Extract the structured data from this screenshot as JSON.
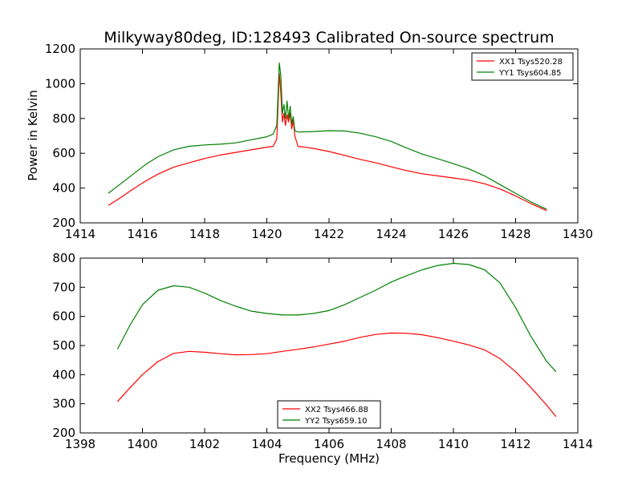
{
  "figure": {
    "title": "Milkyway80deg, ID:128493 Calibrated On-source spectrum",
    "xlabel": "Frequency (MHz)",
    "ylabel": "Power in Kelvin"
  },
  "chart_data": [
    {
      "type": "line",
      "xlim": [
        1414,
        1430
      ],
      "ylim": [
        200,
        1200
      ],
      "xticks": [
        1414,
        1416,
        1418,
        1420,
        1422,
        1424,
        1426,
        1428,
        1430
      ],
      "yticks": [
        200,
        400,
        600,
        800,
        1000,
        1200
      ],
      "grid": false,
      "legend_position": "top-right",
      "series": [
        {
          "name": "XX1 Tsys520.28",
          "color": "#ff0000",
          "x": [
            1414.9,
            1415.3,
            1415.7,
            1416.1,
            1416.5,
            1417.0,
            1417.5,
            1418.0,
            1418.5,
            1419.0,
            1419.5,
            1420.0,
            1420.2,
            1420.32,
            1420.4,
            1420.45,
            1420.5,
            1420.55,
            1420.6,
            1420.65,
            1420.7,
            1420.75,
            1420.8,
            1420.85,
            1420.9,
            1421.0,
            1421.5,
            1422.0,
            1422.5,
            1423.0,
            1423.5,
            1424.0,
            1424.5,
            1425.0,
            1425.5,
            1426.0,
            1426.5,
            1427.0,
            1427.5,
            1428.0,
            1428.5,
            1429.0
          ],
          "y": [
            300,
            345,
            395,
            440,
            480,
            520,
            545,
            570,
            590,
            605,
            620,
            635,
            640,
            680,
            1060,
            950,
            780,
            830,
            760,
            820,
            780,
            830,
            740,
            790,
            700,
            640,
            628,
            610,
            588,
            565,
            545,
            522,
            500,
            482,
            470,
            458,
            445,
            425,
            395,
            355,
            310,
            270
          ]
        },
        {
          "name": "YY1 Tsys604.85",
          "color": "#008000",
          "x": [
            1414.9,
            1415.3,
            1415.7,
            1416.1,
            1416.5,
            1417.0,
            1417.5,
            1418.0,
            1418.5,
            1419.0,
            1419.5,
            1420.0,
            1420.2,
            1420.32,
            1420.4,
            1420.45,
            1420.5,
            1420.55,
            1420.6,
            1420.65,
            1420.7,
            1420.75,
            1420.8,
            1420.85,
            1420.9,
            1421.0,
            1421.5,
            1422.0,
            1422.5,
            1423.0,
            1423.5,
            1424.0,
            1424.5,
            1425.0,
            1425.5,
            1426.0,
            1426.5,
            1427.0,
            1427.5,
            1428.0,
            1428.5,
            1429.0
          ],
          "y": [
            370,
            425,
            480,
            535,
            580,
            620,
            640,
            648,
            652,
            660,
            678,
            695,
            710,
            760,
            1120,
            1050,
            830,
            880,
            800,
            900,
            800,
            870,
            770,
            810,
            730,
            722,
            725,
            730,
            728,
            715,
            695,
            668,
            630,
            595,
            568,
            540,
            510,
            470,
            420,
            370,
            320,
            278
          ]
        }
      ]
    },
    {
      "type": "line",
      "xlim": [
        1398,
        1414
      ],
      "ylim": [
        200,
        800
      ],
      "xticks": [
        1398,
        1400,
        1402,
        1404,
        1406,
        1408,
        1410,
        1412,
        1414
      ],
      "yticks": [
        200,
        300,
        400,
        500,
        600,
        700,
        800
      ],
      "grid": false,
      "legend_position": "bottom-center",
      "series": [
        {
          "name": "XX2 Tsys466.88",
          "color": "#ff0000",
          "x": [
            1399.2,
            1399.6,
            1400.0,
            1400.5,
            1401.0,
            1401.5,
            1402.0,
            1402.5,
            1403.0,
            1403.5,
            1404.0,
            1404.5,
            1405.0,
            1405.5,
            1406.0,
            1406.5,
            1407.0,
            1407.5,
            1408.0,
            1408.5,
            1409.0,
            1409.5,
            1410.0,
            1410.5,
            1411.0,
            1411.5,
            1412.0,
            1412.5,
            1413.0,
            1413.3
          ],
          "y": [
            308,
            355,
            400,
            445,
            473,
            480,
            477,
            472,
            468,
            469,
            472,
            480,
            487,
            495,
            505,
            515,
            528,
            538,
            543,
            542,
            537,
            527,
            515,
            502,
            485,
            455,
            410,
            355,
            295,
            256
          ]
        },
        {
          "name": "YY2 Tsys659.10",
          "color": "#008000",
          "x": [
            1399.2,
            1399.6,
            1400.0,
            1400.5,
            1401.0,
            1401.5,
            1402.0,
            1402.5,
            1403.0,
            1403.5,
            1404.0,
            1404.5,
            1405.0,
            1405.5,
            1406.0,
            1406.5,
            1407.0,
            1407.5,
            1408.0,
            1408.5,
            1409.0,
            1409.5,
            1410.0,
            1410.5,
            1411.0,
            1411.5,
            1412.0,
            1412.5,
            1413.0,
            1413.3
          ],
          "y": [
            488,
            570,
            640,
            690,
            705,
            700,
            680,
            655,
            635,
            618,
            610,
            605,
            605,
            610,
            620,
            640,
            665,
            690,
            718,
            740,
            760,
            775,
            782,
            778,
            760,
            715,
            630,
            530,
            445,
            410
          ]
        }
      ]
    }
  ]
}
